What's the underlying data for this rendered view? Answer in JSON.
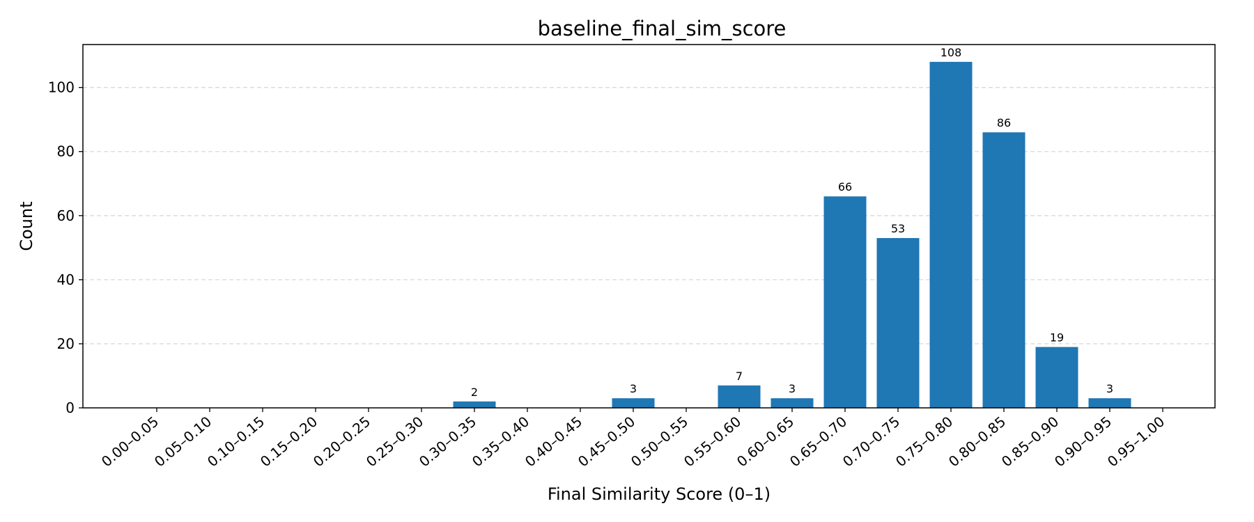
{
  "chart_data": {
    "type": "bar",
    "title": "baseline_final_sim_score",
    "xlabel": "Final Similarity Score (0–1)",
    "ylabel": "Count",
    "categories": [
      "0.00–0.05",
      "0.05–0.10",
      "0.10–0.15",
      "0.15–0.20",
      "0.20–0.25",
      "0.25–0.30",
      "0.30–0.35",
      "0.35–0.40",
      "0.40–0.45",
      "0.45–0.50",
      "0.50–0.55",
      "0.55–0.60",
      "0.60–0.65",
      "0.65–0.70",
      "0.70–0.75",
      "0.75–0.80",
      "0.80–0.85",
      "0.85–0.90",
      "0.90–0.95",
      "0.95–1.00"
    ],
    "values": [
      0,
      0,
      0,
      0,
      0,
      0,
      2,
      0,
      0,
      3,
      0,
      7,
      3,
      66,
      53,
      108,
      86,
      19,
      3,
      0
    ],
    "ylim": [
      0,
      113.4
    ],
    "yticks": [
      0,
      20,
      40,
      60,
      80,
      100
    ],
    "grid": "y-dashed",
    "bar_color": "#1f77b4"
  }
}
